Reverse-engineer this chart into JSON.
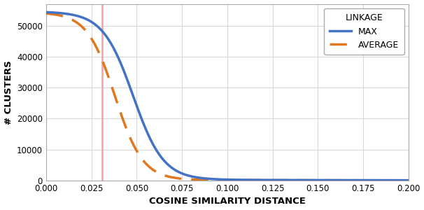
{
  "title": "",
  "xlabel": "COSINE SIMILARITY DISTANCE",
  "ylabel": "# CLUSTERS",
  "xlim": [
    0.0,
    0.2
  ],
  "ylim": [
    0,
    57000
  ],
  "vline_x": 0.031,
  "vline_color": "#f5a8a8",
  "max_color": "#4472c4",
  "average_color": "#e07820",
  "legend_title": "LINKAGE",
  "legend_max": "MAX",
  "legend_average": "AVERAGE",
  "xticks": [
    0.0,
    0.025,
    0.05,
    0.075,
    0.1,
    0.125,
    0.15,
    0.175,
    0.2
  ],
  "yticks": [
    0,
    10000,
    20000,
    30000,
    40000,
    50000
  ],
  "grid_color": "#d8d8d8",
  "background_color": "#ffffff"
}
